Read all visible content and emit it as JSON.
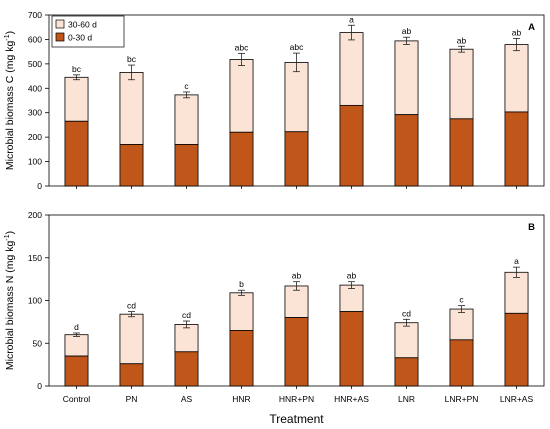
{
  "chart_data": [
    {
      "type": "bar",
      "stacked": true,
      "panel_label": "A",
      "ylabel": "Microbial biomass C (mg kg",
      "ylabel_sup": "-1",
      "ylabel_close": ")",
      "xlabel": "",
      "ylim": [
        0,
        700
      ],
      "yticks": [
        0,
        100,
        200,
        300,
        400,
        500,
        600,
        700
      ],
      "categories": [
        "Control",
        "PN",
        "AS",
        "HNR",
        "HNR+PN",
        "HNR+AS",
        "LNR",
        "LNR+PN",
        "LNR+AS"
      ],
      "show_category_labels": false,
      "series": [
        {
          "name": "0-30 d",
          "color": "#c0561a",
          "values": [
            265,
            170,
            170,
            220,
            222,
            330,
            292,
            275,
            303
          ]
        },
        {
          "name": "30-60 d",
          "color": "#fbe3d6",
          "values": [
            180,
            295,
            203,
            298,
            284,
            298,
            302,
            285,
            276
          ]
        }
      ],
      "totals": [
        445,
        465,
        373,
        518,
        506,
        628,
        594,
        560,
        579
      ],
      "error": [
        10,
        30,
        12,
        25,
        38,
        30,
        15,
        12,
        25
      ],
      "significance": [
        "bc",
        "bc",
        "c",
        "abc",
        "abc",
        "a",
        "ab",
        "ab",
        "ab"
      ],
      "legend": {
        "position": "top-left",
        "entries": [
          "30-60 d",
          "0-30 d"
        ]
      }
    },
    {
      "type": "bar",
      "stacked": true,
      "panel_label": "B",
      "ylabel": "Microbial biomass N (mg kg",
      "ylabel_sup": "-1",
      "ylabel_close": ")",
      "xlabel": "Treatment",
      "ylim": [
        0,
        200
      ],
      "yticks": [
        0,
        50,
        100,
        150,
        200
      ],
      "categories": [
        "Control",
        "PN",
        "AS",
        "HNR",
        "HNR+PN",
        "HNR+AS",
        "LNR",
        "LNR+PN",
        "LNR+AS"
      ],
      "show_category_labels": true,
      "series": [
        {
          "name": "0-30 d",
          "color": "#c0561a",
          "values": [
            35,
            26,
            40,
            65,
            80,
            87,
            33,
            54,
            85
          ]
        },
        {
          "name": "30-60 d",
          "color": "#fbe3d6",
          "values": [
            25,
            58,
            32,
            44,
            37,
            31,
            41,
            36,
            48
          ]
        }
      ],
      "totals": [
        60,
        84,
        72,
        109,
        117,
        118,
        74,
        90,
        133
      ],
      "error": [
        2,
        3,
        4,
        3,
        5,
        4,
        4,
        4,
        6
      ],
      "significance": [
        "d",
        "cd",
        "cd",
        "b",
        "ab",
        "ab",
        "cd",
        "c",
        "a"
      ]
    }
  ]
}
